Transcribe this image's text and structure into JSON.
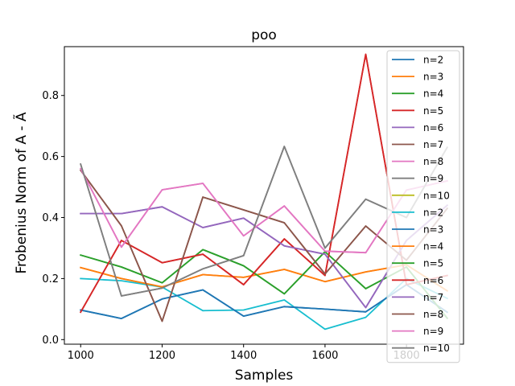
{
  "chart_data": {
    "type": "line",
    "title": "poo",
    "xlabel": "Samples",
    "ylabel": "Frobenius Norm of A - Ã",
    "xlim": [
      960,
      1940
    ],
    "ylim": [
      -0.015,
      0.96
    ],
    "xticks": [
      1000,
      1200,
      1400,
      1600,
      1800
    ],
    "yticks": [
      0.0,
      0.2,
      0.4,
      0.6,
      0.8
    ],
    "ytick_labels": [
      "0.0",
      "0.2",
      "0.4",
      "0.6",
      "0.8"
    ],
    "legend_position": "upper right",
    "x": [
      1000,
      1100,
      1200,
      1300,
      1400,
      1500,
      1600,
      1700,
      1800,
      1900
    ],
    "series": [
      {
        "name": "n=2",
        "color": "#1f77b4",
        "values": [
          0.097,
          0.069,
          0.133,
          0.163,
          0.077,
          0.108,
          0.1,
          0.091,
          0.18,
          0.09
        ]
      },
      {
        "name": "n=3",
        "color": "#ff7f0e",
        "values": [
          0.236,
          0.2,
          0.173,
          0.213,
          0.204,
          0.23,
          0.19,
          0.222,
          0.245,
          0.16
        ]
      },
      {
        "name": "n=4",
        "color": "#2ca02c",
        "values": [
          0.277,
          0.238,
          0.186,
          0.295,
          0.242,
          0.15,
          0.288,
          0.167,
          0.238,
          0.07
        ]
      },
      {
        "name": "n=5",
        "color": "#d62728",
        "values": [
          0.09,
          0.325,
          0.252,
          0.28,
          0.18,
          0.33,
          0.21,
          0.935,
          0.18,
          0.21
        ]
      },
      {
        "name": "n=6",
        "color": "#9467bd",
        "values": [
          0.413,
          0.413,
          0.435,
          0.367,
          0.398,
          0.307,
          0.28,
          0.105,
          0.325,
          0.44
        ]
      },
      {
        "name": "n=7",
        "color": "#8c564b",
        "values": [
          0.555,
          0.373,
          0.06,
          0.467,
          0.425,
          0.383,
          0.215,
          0.372,
          0.26,
          0.43
        ]
      },
      {
        "name": "n=8",
        "color": "#e377c2",
        "values": [
          0.56,
          0.303,
          0.491,
          0.512,
          0.34,
          0.438,
          0.29,
          0.285,
          0.49,
          0.52
        ]
      },
      {
        "name": "n=9",
        "color": "#7f7f7f",
        "values": [
          0.575,
          0.143,
          0.169,
          0.232,
          0.275,
          0.633,
          0.3,
          0.46,
          0.4,
          0.63
        ]
      },
      {
        "name": "n=10",
        "color": "#bcbd22",
        "values": null
      },
      {
        "name": "n=2",
        "color": "#17becf",
        "values": [
          0.2,
          0.193,
          0.172,
          0.095,
          0.097,
          0.13,
          0.034,
          0.073,
          0.2,
          0.135
        ]
      },
      {
        "name": "n=3",
        "color": "#1f77b4",
        "values": [
          0.097,
          0.069,
          0.133,
          0.163,
          0.077,
          0.108,
          0.1,
          0.091,
          0.18,
          0.09
        ]
      },
      {
        "name": "n=4",
        "color": "#ff7f0e",
        "values": [
          0.236,
          0.2,
          0.173,
          0.213,
          0.204,
          0.23,
          0.19,
          0.222,
          0.245,
          0.16
        ]
      },
      {
        "name": "n=5",
        "color": "#2ca02c",
        "values": [
          0.277,
          0.238,
          0.186,
          0.295,
          0.242,
          0.15,
          0.288,
          0.167,
          0.238,
          0.07
        ]
      },
      {
        "name": "n=6",
        "color": "#d62728",
        "values": [
          0.09,
          0.325,
          0.252,
          0.28,
          0.18,
          0.33,
          0.21,
          0.935,
          0.18,
          0.21
        ]
      },
      {
        "name": "n=7",
        "color": "#9467bd",
        "values": [
          0.413,
          0.413,
          0.435,
          0.367,
          0.398,
          0.307,
          0.28,
          0.105,
          0.325,
          0.44
        ]
      },
      {
        "name": "n=8",
        "color": "#8c564b",
        "values": [
          0.555,
          0.373,
          0.06,
          0.467,
          0.425,
          0.383,
          0.215,
          0.372,
          0.26,
          0.43
        ]
      },
      {
        "name": "n=9",
        "color": "#e377c2",
        "values": [
          0.56,
          0.303,
          0.491,
          0.512,
          0.34,
          0.438,
          0.29,
          0.285,
          0.49,
          0.52
        ]
      },
      {
        "name": "n=10",
        "color": "#7f7f7f",
        "values": [
          0.575,
          0.143,
          0.169,
          0.232,
          0.275,
          0.633,
          0.3,
          0.46,
          0.4,
          0.63
        ]
      }
    ]
  }
}
